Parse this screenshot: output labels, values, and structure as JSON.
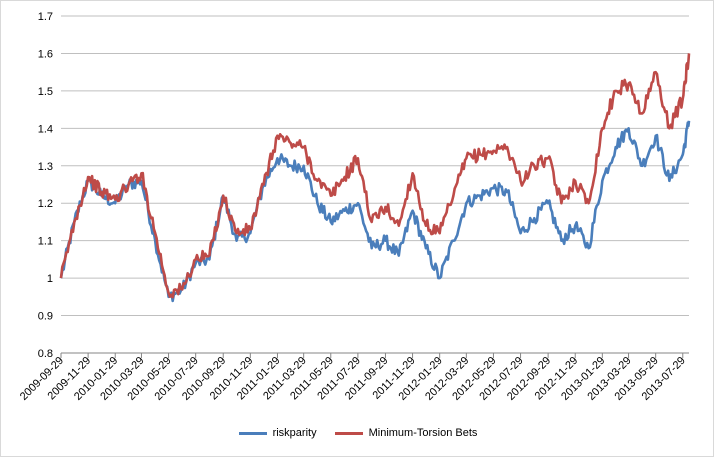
{
  "chart_data": {
    "type": "line",
    "title": "",
    "xlabel": "",
    "ylabel": "",
    "ylim": [
      0.8,
      1.7
    ],
    "yticks": [
      "0.8",
      "0.9",
      "1",
      "1.1",
      "1.2",
      "1.3",
      "1.4",
      "1.5",
      "1.6",
      "1.7"
    ],
    "x_tick_labels": [
      "2009-09-29",
      "2009-11-29",
      "2010-01-29",
      "2010-03-29",
      "2010-05-29",
      "2010-07-29",
      "2010-09-29",
      "2010-11-29",
      "2011-01-29",
      "2011-03-29",
      "2011-05-29",
      "2011-07-29",
      "2011-09-29",
      "2011-11-29",
      "2012-01-29",
      "2012-03-29",
      "2012-05-29",
      "2012-07-29",
      "2012-09-29",
      "2012-11-29",
      "2013-01-29",
      "2013-03-29",
      "2013-05-29",
      "2013-07-29"
    ],
    "x": [
      "2009-09-29",
      "2009-10-29",
      "2009-11-29",
      "2009-12-29",
      "2010-01-29",
      "2010-02-28",
      "2010-03-29",
      "2010-04-29",
      "2010-05-29",
      "2010-06-29",
      "2010-07-29",
      "2010-08-29",
      "2010-09-29",
      "2010-10-29",
      "2010-11-29",
      "2010-12-29",
      "2011-01-29",
      "2011-02-28",
      "2011-03-29",
      "2011-04-29",
      "2011-05-29",
      "2011-06-29",
      "2011-07-29",
      "2011-08-29",
      "2011-09-29",
      "2011-10-29",
      "2011-11-29",
      "2011-12-29",
      "2012-01-29",
      "2012-02-29",
      "2012-03-29",
      "2012-04-29",
      "2012-05-29",
      "2012-06-29",
      "2012-07-29",
      "2012-08-29",
      "2012-09-29",
      "2012-10-29",
      "2012-11-29",
      "2012-12-29",
      "2013-01-29",
      "2013-02-28",
      "2013-03-29",
      "2013-04-29",
      "2013-05-29",
      "2013-06-29",
      "2013-07-29",
      "2013-08-12"
    ],
    "series": [
      {
        "name": "riskparity",
        "color": "#4a7ebb",
        "values": [
          1.0,
          1.15,
          1.26,
          1.22,
          1.2,
          1.25,
          1.26,
          1.1,
          0.95,
          0.97,
          1.04,
          1.05,
          1.22,
          1.1,
          1.12,
          1.25,
          1.32,
          1.3,
          1.3,
          1.2,
          1.15,
          1.18,
          1.2,
          1.08,
          1.1,
          1.06,
          1.18,
          1.08,
          1.0,
          1.1,
          1.2,
          1.22,
          1.24,
          1.23,
          1.12,
          1.16,
          1.2,
          1.1,
          1.14,
          1.08,
          1.26,
          1.35,
          1.4,
          1.3,
          1.38,
          1.26,
          1.33,
          1.42
        ]
      },
      {
        "name": "Minimum-Torsion Bets",
        "color": "#be4b48",
        "values": [
          1.0,
          1.15,
          1.27,
          1.23,
          1.21,
          1.25,
          1.28,
          1.12,
          0.96,
          0.97,
          1.05,
          1.06,
          1.22,
          1.12,
          1.13,
          1.25,
          1.38,
          1.36,
          1.35,
          1.26,
          1.22,
          1.27,
          1.32,
          1.15,
          1.19,
          1.14,
          1.28,
          1.14,
          1.12,
          1.22,
          1.32,
          1.33,
          1.34,
          1.35,
          1.26,
          1.3,
          1.32,
          1.2,
          1.26,
          1.2,
          1.4,
          1.5,
          1.52,
          1.44,
          1.55,
          1.4,
          1.48,
          1.6
        ]
      }
    ],
    "grid": true,
    "legend": "bottom"
  }
}
